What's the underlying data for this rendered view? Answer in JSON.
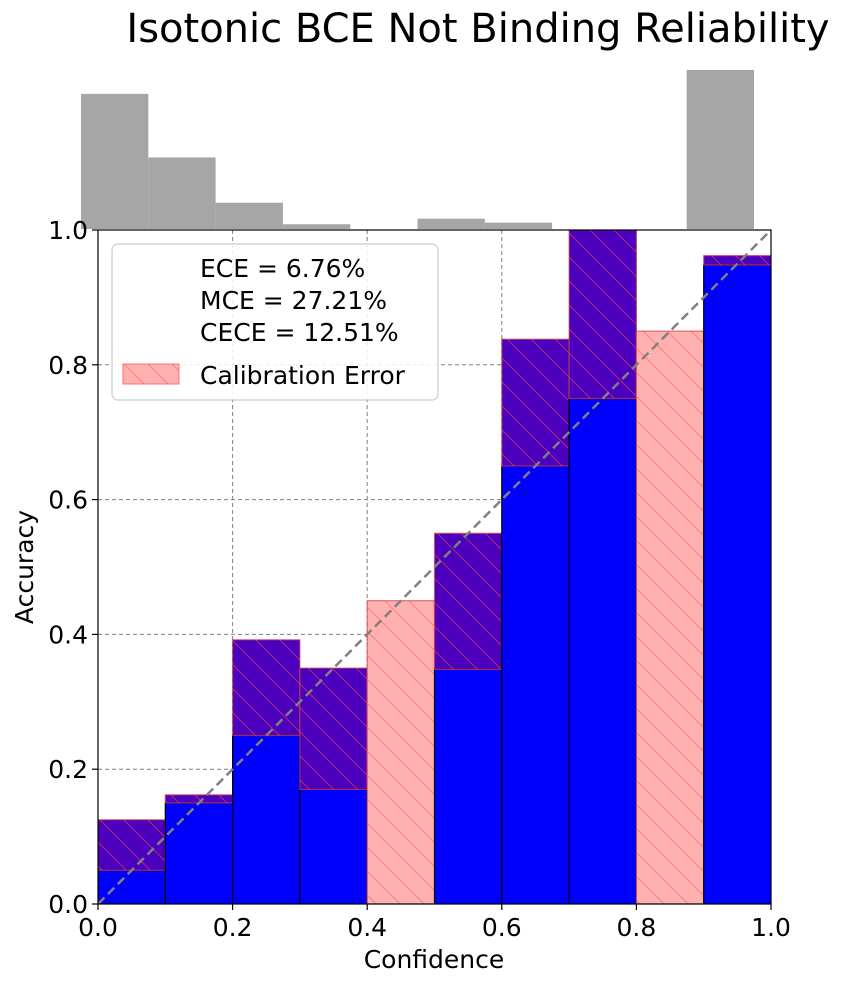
{
  "chart_data": {
    "type": "bar",
    "title": "Isotonic BCE Not Binding Reliability",
    "xlabel": "Confidence",
    "ylabel": "Accuracy",
    "xlim": [
      0.0,
      1.0
    ],
    "ylim": [
      0.0,
      1.0
    ],
    "grid": true,
    "legend_placement": "top-left",
    "x_ticks": [
      "0.0",
      "0.2",
      "0.4",
      "0.6",
      "0.8",
      "1.0"
    ],
    "y_ticks": [
      "0.0",
      "0.2",
      "0.4",
      "0.6",
      "0.8",
      "1.0"
    ],
    "bins": [
      {
        "x0": 0.0,
        "x1": 0.1,
        "accuracy": 0.05,
        "expected": 0.125
      },
      {
        "x0": 0.1,
        "x1": 0.2,
        "accuracy": 0.15,
        "expected": 0.162
      },
      {
        "x0": 0.2,
        "x1": 0.3,
        "accuracy": 0.25,
        "expected": 0.392
      },
      {
        "x0": 0.3,
        "x1": 0.4,
        "accuracy": 0.17,
        "expected": 0.35
      },
      {
        "x0": 0.4,
        "x1": 0.5,
        "accuracy": 0.0,
        "expected": 0.45
      },
      {
        "x0": 0.5,
        "x1": 0.6,
        "accuracy": 0.348,
        "expected": 0.55
      },
      {
        "x0": 0.6,
        "x1": 0.7,
        "accuracy": 0.65,
        "expected": 0.838
      },
      {
        "x0": 0.7,
        "x1": 0.8,
        "accuracy": 0.75,
        "expected": 1.0
      },
      {
        "x0": 0.8,
        "x1": 0.9,
        "accuracy": 0.0,
        "expected": 0.85
      },
      {
        "x0": 0.9,
        "x1": 1.0,
        "accuracy": 0.948,
        "expected": 0.962
      }
    ],
    "histogram": {
      "bins": [
        [
          0.0,
          0.1
        ],
        [
          0.1,
          0.2
        ],
        [
          0.2,
          0.3
        ],
        [
          0.3,
          0.4
        ],
        [
          0.4,
          0.5
        ],
        [
          0.5,
          0.6
        ],
        [
          0.6,
          0.7
        ],
        [
          0.7,
          0.8
        ],
        [
          0.8,
          0.9
        ],
        [
          0.9,
          1.0
        ]
      ],
      "relative_counts": [
        0.85,
        0.45,
        0.165,
        0.03,
        0.0,
        0.065,
        0.04,
        0.0,
        0.0,
        1.0
      ]
    },
    "legend": {
      "ece": "ECE = 6.76%",
      "mce": "MCE = 27.21%",
      "cece": "CECE = 12.51%",
      "error_label": "Calibration Error"
    },
    "colors": {
      "accuracy_bar": "#0000ff",
      "calibration_error": "#ffb0b0",
      "overlap": "#4b00bd",
      "histogram": "#a6a6a6",
      "diagonal": "#808080"
    }
  }
}
